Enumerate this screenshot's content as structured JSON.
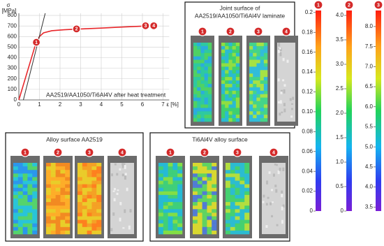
{
  "chart_data": [
    {
      "type": "line",
      "annotation": "AA2519/AA1050/Ti6Al4V after heat treatment",
      "y_label": "σ",
      "y_unit": "[MPa]",
      "x_label": "ε [%]",
      "xlim": [
        0,
        7.3
      ],
      "ylim": [
        0,
        820
      ],
      "xticks": [
        0,
        1,
        2,
        3,
        4,
        5,
        6,
        7
      ],
      "yticks": [
        0,
        100,
        200,
        300,
        400,
        500,
        600,
        700,
        800
      ],
      "grid": true,
      "series": [
        {
          "color": "#e8262a",
          "x": [
            0,
            0.4,
            0.8,
            1.0,
            1.2,
            1.6,
            2.2,
            2.8,
            4.0,
            5.0,
            6.2,
            6.6
          ],
          "values": [
            0,
            260,
            520,
            600,
            635,
            655,
            664,
            670,
            680,
            690,
            700,
            705
          ]
        },
        {
          "color": "#333333",
          "x": [
            0.22,
            1.28
          ],
          "values": [
            0,
            820
          ]
        }
      ],
      "points": {
        "x": [
          0.85,
          2.8,
          6.15,
          6.55
        ],
        "values": [
          545,
          672,
          702,
          702
        ],
        "labels": [
          "1",
          "2",
          "3",
          "4"
        ],
        "color": "#d42a2a"
      }
    },
    {
      "type": "colorbar",
      "label": "1",
      "ylim": [
        0,
        0.202
      ],
      "yticks": [
        0,
        0.02,
        0.04,
        0.06,
        0.08,
        {
          "value": 0.1,
          "label": "0.10"
        },
        0.12,
        0.14,
        0.16,
        0.18,
        0.2
      ]
    },
    {
      "type": "colorbar",
      "label": "2",
      "ylim": [
        0,
        4.1
      ],
      "yticks": [
        0,
        0.5,
        {
          "value": 1,
          "label": "1.0"
        },
        1.5,
        {
          "value": 2,
          "label": "2.0"
        },
        2.5,
        {
          "value": 3,
          "label": "3.0"
        },
        3.5,
        {
          "value": 4,
          "label": "4.0"
        }
      ]
    },
    {
      "type": "colorbar",
      "label": "3",
      "ylim": [
        3.4,
        8.4
      ],
      "yticks": [
        3.5,
        {
          "value": 4,
          "label": "4.0"
        },
        4.5,
        {
          "value": 5,
          "label": "5.0"
        },
        5.5,
        {
          "value": 6,
          "label": "6.0"
        },
        6.5,
        {
          "value": 7,
          "label": "7.0"
        },
        7.5,
        {
          "value": 8,
          "label": "8.0"
        }
      ]
    }
  ],
  "panels": [
    {
      "title": [
        "Joint surface of",
        "AA2519/AA1050/Ti6Al4V laminate"
      ],
      "specimens": [
        "1",
        "2",
        "3",
        "4"
      ]
    },
    {
      "title": [
        "Alloy surface AA2519"
      ],
      "specimens": [
        "1",
        "2",
        "3",
        "4"
      ]
    },
    {
      "title": [
        "Ti6Al4V alloy surface"
      ],
      "specimens": [
        "1",
        "2",
        "3",
        "4"
      ]
    }
  ]
}
